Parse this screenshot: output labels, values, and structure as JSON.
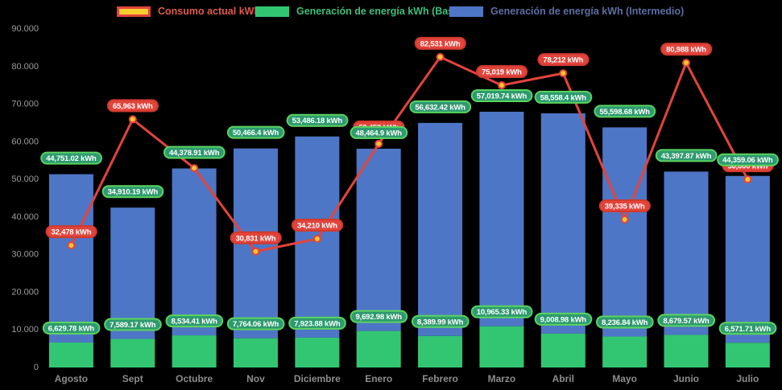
{
  "legend": {
    "items": [
      {
        "label": "Consumo actual kWh",
        "swatch_fill": "#f6cd2e",
        "swatch_border": "#e2443c",
        "text_color": "#de5b4f"
      },
      {
        "label": "Generación de energía kWh (Base)",
        "swatch_fill": "#32c673",
        "text_color": "#3ebd7b"
      },
      {
        "label": "Generación de energía kWh (Intermedio)",
        "swatch_fill": "#4e76c6",
        "text_color": "#5d6da1"
      }
    ]
  },
  "chart_data": {
    "type": "bar",
    "subtype": "stacked bars with line overlay",
    "title": "",
    "background": "#000000",
    "grid": false,
    "legend_position": "top",
    "ylim": [
      0,
      90000
    ],
    "y_ticks": [
      "0",
      "10.000",
      "20.000",
      "30.000",
      "40.000",
      "50.000",
      "60.000",
      "70.000",
      "80.000",
      "90.000"
    ],
    "categories": [
      "Agosto",
      "Sept",
      "Octubre",
      "Nov",
      "Diciembre",
      "Enero",
      "Febrero",
      "Marzo",
      "Abril",
      "Mayo",
      "Junio",
      "Julio"
    ],
    "series": [
      {
        "name": "Generación de energía kWh (Base)",
        "type": "bar",
        "stack": "bottom",
        "color": "#32c673",
        "values": [
          6629.78,
          7589.17,
          8534.41,
          7764.06,
          7923.88,
          9692.98,
          8389.99,
          10965.33,
          9008.98,
          8236.84,
          8679.57,
          6571.71
        ],
        "labels": [
          "6,629.78 kWh",
          "7,589.17 kWh",
          "8,534.41 kWh",
          "7,764.06 kWh",
          "7,923.88 kWh",
          "9,692.98 kWh",
          "8,389.99 kWh",
          "10,965.33 kWh",
          "9,008.98 kWh",
          "8,236.84 kWh",
          "8,679.57 kWh",
          "6,571.71 kWh"
        ]
      },
      {
        "name": "Generación de energía kWh (Intermedio)",
        "type": "bar",
        "stack": "top",
        "color": "#4e76c6",
        "values": [
          44751.02,
          34910.19,
          44378.91,
          50466.4,
          53486.18,
          48464.9,
          56632.42,
          57019.74,
          58558.4,
          55598.68,
          43397.87,
          44359.06
        ],
        "labels": [
          "44,751.02 kWh",
          "34,910.19 kWh",
          "44,378.91 kWh",
          "50,466.4 kWh",
          "53,486.18 kWh",
          "48,464.9 kWh",
          "56,632.42 kWh",
          "57,019.74 kWh",
          "58,558.4 kWh",
          "55,598.68 kWh",
          "43,397.87 kWh",
          "44,359.06 kWh"
        ]
      },
      {
        "name": "Consumo actual kWh",
        "type": "line",
        "color": "#e2443c",
        "marker_fill": "#fdc330",
        "values": [
          32478,
          65963,
          53000,
          30831,
          34210,
          59453,
          82531,
          75019,
          78212,
          39335,
          80988,
          50000
        ],
        "labels": [
          "32,478 kWh",
          "65,963 kWh",
          "53,000 kWh",
          "30,831 kWh",
          "34,210 kWh",
          "59,453 kWh",
          "82,531 kWh",
          "75,019 kWh",
          "78,212 kWh",
          "39,335 kWh",
          "80,988 kWh",
          "50,000 kWh"
        ],
        "hidden_label_indices": [
          2,
          5,
          11
        ],
        "note": "The line labels at Octubre, Enero and Julio are covered by the generation labels in the screenshot; those three values are estimated from marker positions."
      }
    ],
    "label_style": {
      "generation_fill": "#2e9a70",
      "generation_border": "#5ad45f",
      "consumo_fill": "#e2443c",
      "consumo_border": "#cf3a2e",
      "text_color": "#ffffff"
    }
  }
}
